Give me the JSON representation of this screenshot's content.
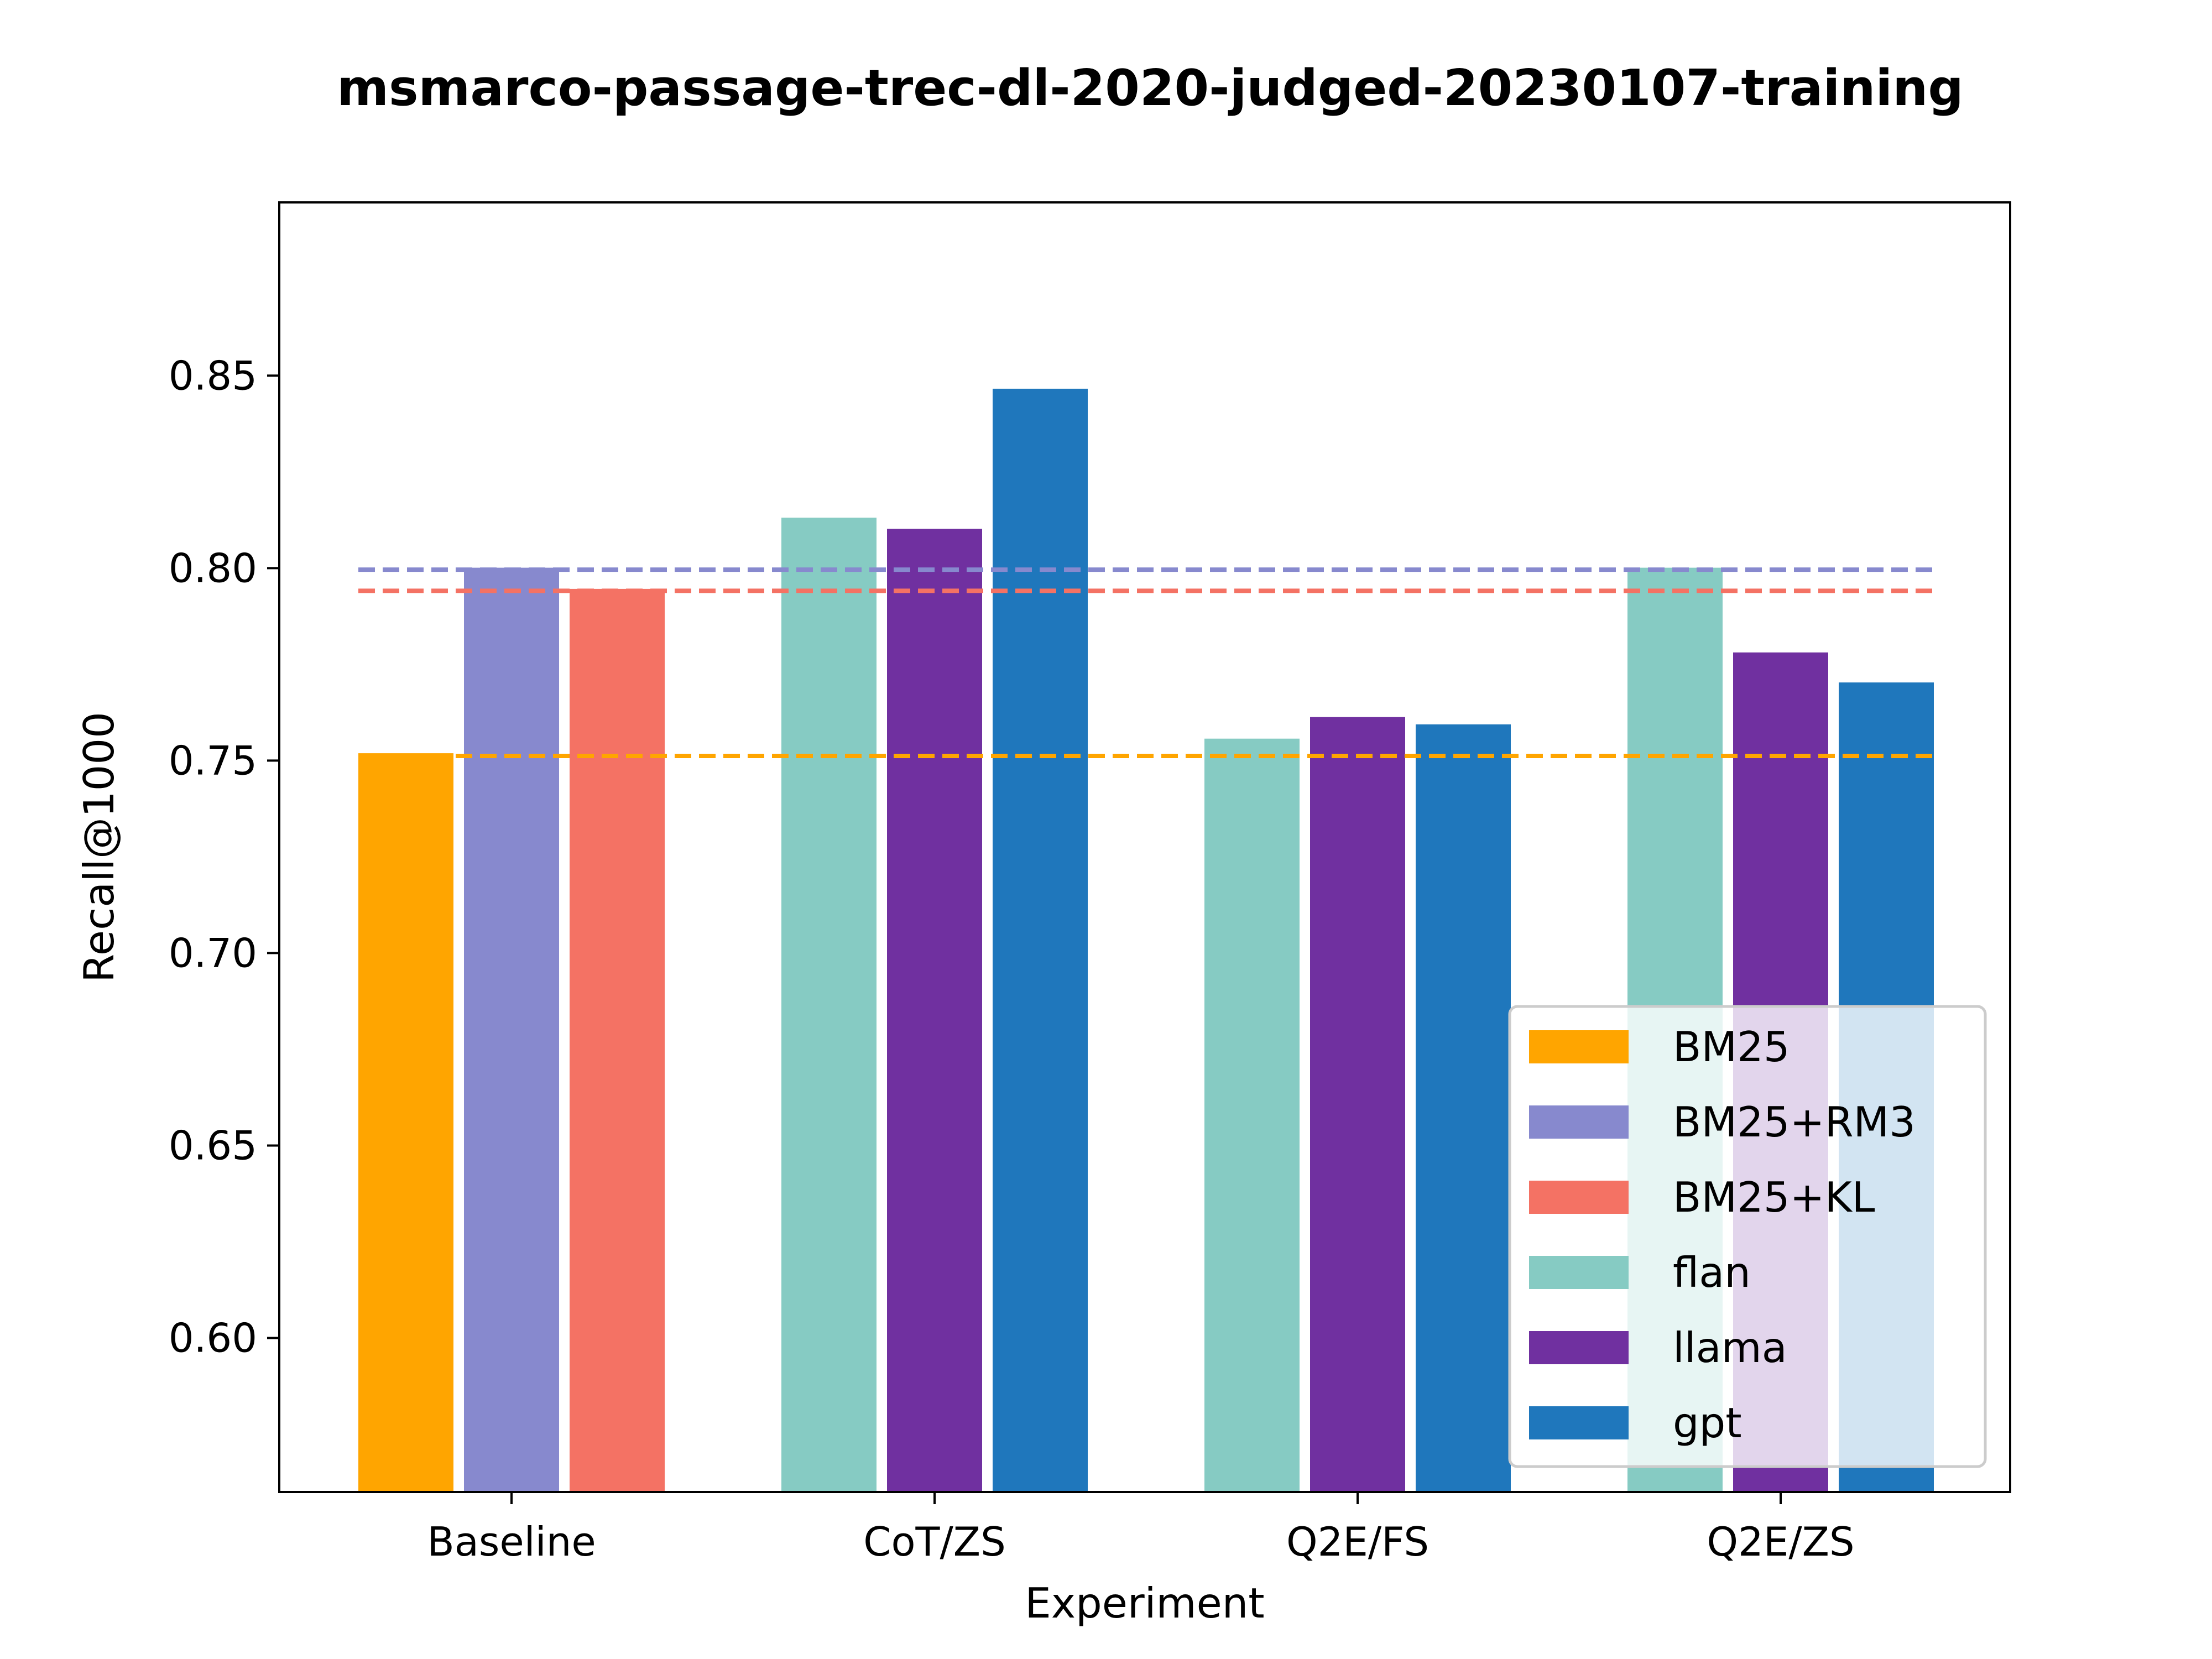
{
  "chart_data": {
    "type": "bar",
    "title": "msmarco-passage-trec-dl-2020-judged-20230107-training",
    "xlabel": "Experiment",
    "ylabel": "Recall@1000",
    "ylim": [
      0.56,
      0.895
    ],
    "yticks": [
      "0.60",
      "0.65",
      "0.70",
      "0.75",
      "0.80",
      "0.85"
    ],
    "categories": [
      "Baseline",
      "CoT/ZS",
      "Q2E/FS",
      "Q2E/ZS"
    ],
    "series": [
      {
        "name": "BM25",
        "color": "#FFA500",
        "values": [
          0.7519,
          null,
          null,
          null
        ]
      },
      {
        "name": "BM25+RM3",
        "color": "#8789CE",
        "values": [
          0.8001,
          null,
          null,
          null
        ]
      },
      {
        "name": "BM25+KL",
        "color": "#F47264",
        "values": [
          0.7946,
          null,
          null,
          null
        ]
      },
      {
        "name": "flan",
        "color": "#86CBC3",
        "values": [
          null,
          0.8131,
          0.7557,
          0.8001
        ]
      },
      {
        "name": "llama",
        "color": "#7030A0",
        "values": [
          null,
          0.8102,
          0.7613,
          0.7781
        ]
      },
      {
        "name": "gpt",
        "color": "#1F77BC",
        "values": [
          null,
          0.8466,
          0.7594,
          0.7703
        ]
      }
    ],
    "reference_lines": [
      {
        "series": "BM25",
        "value": 0.7512,
        "color": "#FFA500"
      },
      {
        "series": "BM25+RM3",
        "value": 0.7996,
        "color": "#8789CE"
      },
      {
        "series": "BM25+KL",
        "value": 0.7941,
        "color": "#F47264"
      }
    ],
    "legend_position": "lower-right",
    "grid": false
  }
}
